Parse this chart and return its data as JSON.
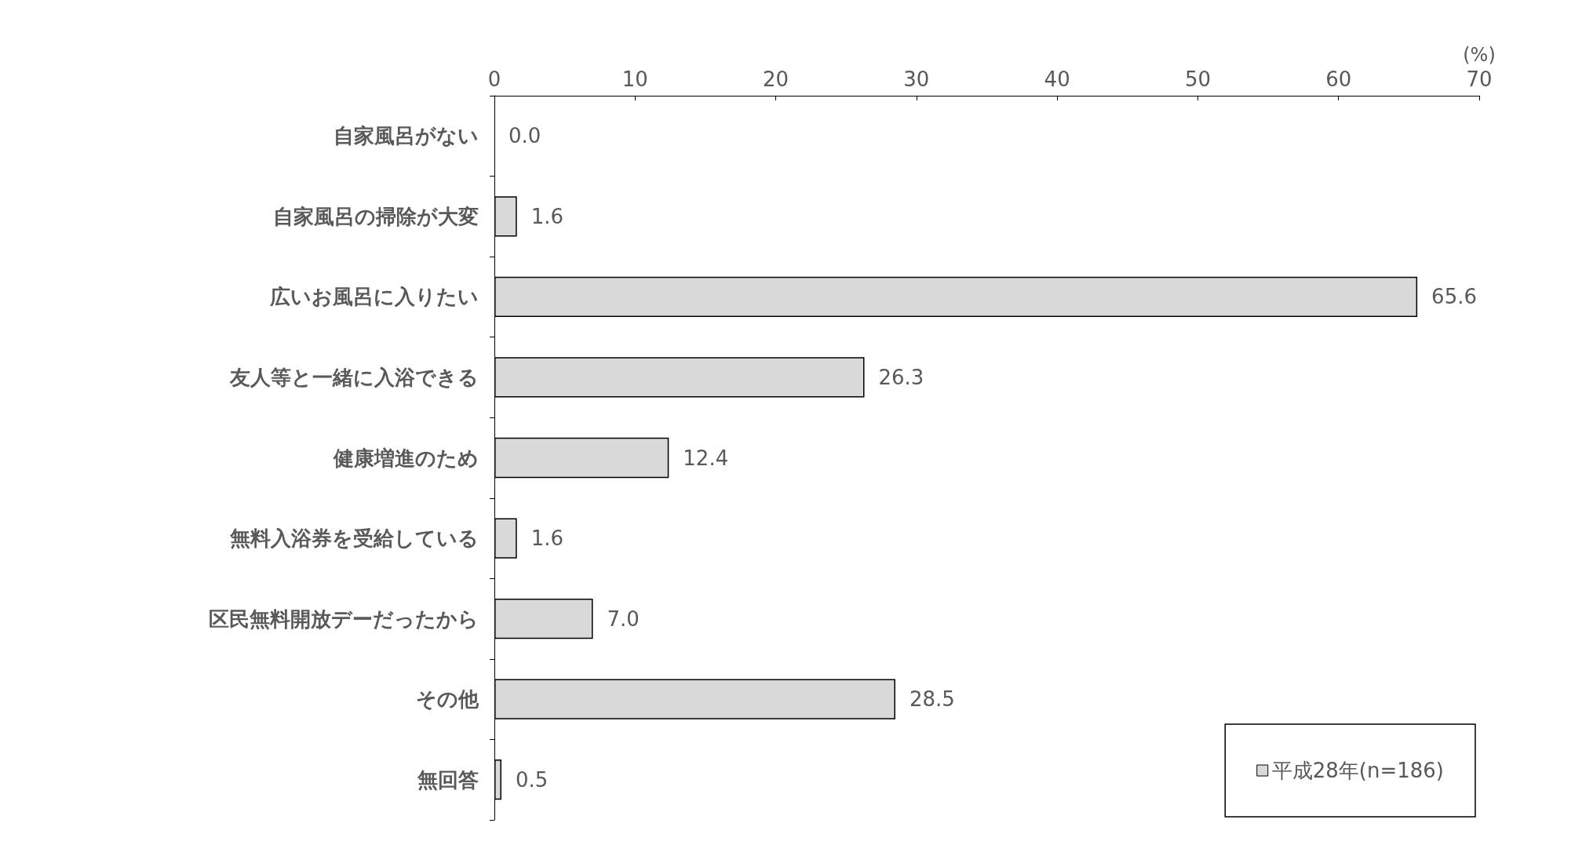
{
  "chart_data": {
    "type": "bar",
    "orientation": "horizontal",
    "xlabel": "(%)",
    "categories": [
      "自家風呂がない",
      "自家風呂の掃除が大変",
      "広いお風呂に入りたい",
      "友人等と一緒に入浴できる",
      "健康増進のため",
      "無料入浴券を受給している",
      "区民無料開放デーだったから",
      "その他",
      "無回答"
    ],
    "series": [
      {
        "name": "平成28年(n=186)",
        "color": "#d9d9d9",
        "values": [
          0.0,
          1.6,
          65.6,
          26.3,
          12.4,
          1.6,
          7.0,
          28.5,
          0.5
        ],
        "value_labels": [
          "0.0",
          "1.6",
          "65.6",
          "26.3",
          "12.4",
          "1.6",
          "7.0",
          "28.5",
          "0.5"
        ]
      }
    ],
    "xlim": [
      0,
      70
    ],
    "xticks": [
      0,
      10,
      20,
      30,
      40,
      50,
      60,
      70
    ],
    "grid": false,
    "legend": "bottom right"
  }
}
